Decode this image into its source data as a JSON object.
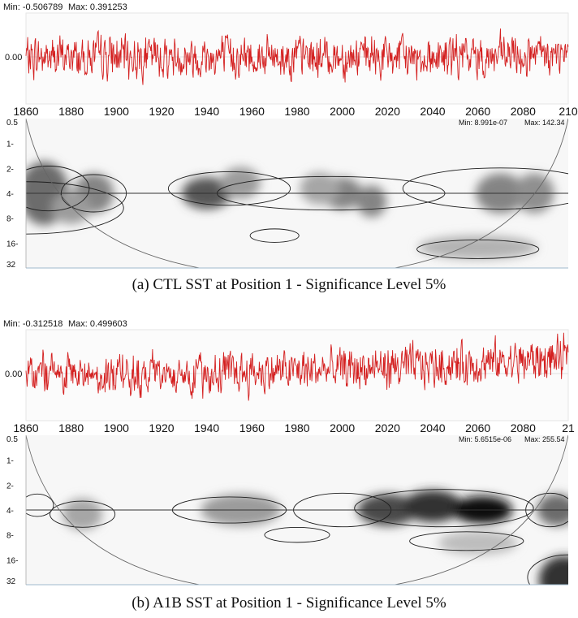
{
  "panels": [
    {
      "caption": "(a)  CTL SST at Position 1 - Significance Level 5%",
      "ts_min_label": "Min: -0.506789",
      "ts_max_label": "Max: 0.391253",
      "ts_zero_label": "0.00",
      "wv_min_label": "Min: 8.991e-07",
      "wv_max_label": "Max: 142.34",
      "period_ticks": [
        "0.5",
        "1-",
        "2-",
        "4-",
        "8-",
        "16-",
        "32"
      ],
      "year_ticks": [
        "1860",
        "1880",
        "1900",
        "1920",
        "1940",
        "1960",
        "1980",
        "2000",
        "2020",
        "2040",
        "2060",
        "2080",
        "210"
      ]
    },
    {
      "caption": "(b)  A1B SST at Position 1 - Significance Level 5%",
      "ts_min_label": "Min: -0.312518",
      "ts_max_label": "Max: 0.499603",
      "ts_zero_label": "0.00",
      "wv_min_label": "Min: 5.6515e-06",
      "wv_max_label": "Max: 255.54",
      "period_ticks": [
        "0.5",
        "1-",
        "2-",
        "4-",
        "8-",
        "16-",
        "32"
      ],
      "year_ticks": [
        "1860",
        "1880",
        "1900",
        "1920",
        "1940",
        "1960",
        "1980",
        "2000",
        "2020",
        "2040",
        "2060",
        "2080",
        "21"
      ]
    }
  ],
  "chart_data": [
    {
      "type": "line",
      "title": "CTL SST at Position 1 - Significance Level 5%",
      "x_range": [
        1860,
        2100
      ],
      "y_min": -0.506789,
      "y_max": 0.391253,
      "trend": 0.0,
      "line_color": "#d42020"
    },
    {
      "type": "heatmap",
      "x_range": [
        1860,
        2100
      ],
      "y_range": [
        0.5,
        32
      ],
      "y_scale": "log",
      "value_min": 8.991e-07,
      "value_max": 142.34,
      "blobs": [
        [
          1868,
          4,
          5,
          0.8,
          0.55
        ],
        [
          1890,
          4,
          4,
          0.5,
          0.45
        ],
        [
          1880,
          6,
          4,
          0.4,
          0.35
        ],
        [
          1940,
          4,
          5,
          0.4,
          0.65
        ],
        [
          1955,
          3,
          4,
          0.4,
          0.35
        ],
        [
          2000,
          4,
          4,
          0.4,
          0.45
        ],
        [
          2013,
          5,
          3,
          0.4,
          0.45
        ],
        [
          1990,
          3.5,
          4,
          0.4,
          0.3
        ],
        [
          2070,
          4,
          5,
          0.5,
          0.45
        ],
        [
          2085,
          4,
          4,
          0.5,
          0.4
        ],
        [
          2060,
          18,
          12,
          0.3,
          0.25
        ]
      ],
      "contours": [
        [
          1860,
          6,
          24,
          0.7
        ],
        [
          1870,
          3.5,
          10,
          0.6
        ],
        [
          1890,
          4,
          8,
          0.5
        ],
        [
          1950,
          3.5,
          15,
          0.45
        ],
        [
          1995,
          4,
          28,
          0.45
        ],
        [
          2070,
          3.5,
          24,
          0.55
        ],
        [
          1970,
          13,
          6,
          0.18
        ],
        [
          2060,
          19,
          15,
          0.25
        ]
      ]
    },
    {
      "type": "line",
      "title": "A1B SST at Position 1 - Significance Level 5%",
      "x_range": [
        1860,
        2100
      ],
      "y_min": -0.312518,
      "y_max": 0.499603,
      "trend": 0.28,
      "line_color": "#d42020"
    },
    {
      "type": "heatmap",
      "x_range": [
        1860,
        2100
      ],
      "y_range": [
        0.5,
        32
      ],
      "y_scale": "log",
      "value_min": 5.6515e-06,
      "value_max": 255.54,
      "blobs": [
        [
          1885,
          4.5,
          4,
          0.4,
          0.3
        ],
        [
          1955,
          4,
          8,
          0.4,
          0.35
        ],
        [
          2020,
          4,
          6,
          0.4,
          0.7
        ],
        [
          2040,
          3.6,
          6,
          0.4,
          0.8
        ],
        [
          2062,
          4,
          6,
          0.35,
          0.95
        ],
        [
          2095,
          4,
          4,
          0.4,
          0.55
        ],
        [
          2098,
          28,
          5,
          0.6,
          0.8
        ],
        [
          2060,
          10,
          8,
          0.3,
          0.2
        ]
      ],
      "contours": [
        [
          1865,
          3.5,
          4,
          0.3
        ],
        [
          1885,
          4.5,
          8,
          0.35
        ],
        [
          1950,
          4,
          14,
          0.35
        ],
        [
          2000,
          4,
          12,
          0.45
        ],
        [
          2045,
          3.8,
          22,
          0.5
        ],
        [
          2092,
          4,
          6,
          0.45
        ],
        [
          1980,
          8,
          8,
          0.2
        ],
        [
          2055,
          9.5,
          14,
          0.25
        ],
        [
          2100,
          26,
          10,
          0.6
        ]
      ]
    }
  ]
}
